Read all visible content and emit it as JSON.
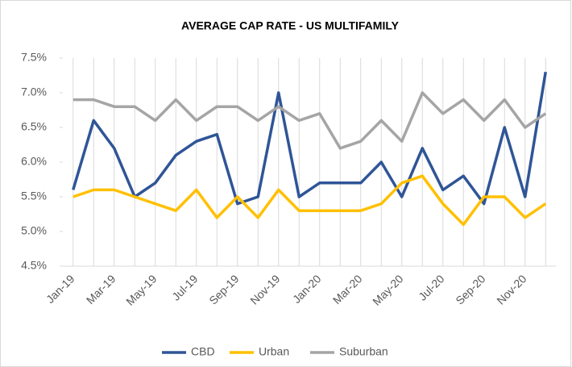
{
  "chart_data": {
    "type": "line",
    "title": "AVERAGE CAP RATE - US MULTIFAMILY",
    "categories": [
      "Jan-19",
      null,
      "Mar-19",
      null,
      "May-19",
      null,
      "Jul-19",
      null,
      "Sep-19",
      null,
      "Nov-19",
      null,
      "Jan-20",
      null,
      "Mar-20",
      null,
      "May-20",
      null,
      "Jul-20",
      null,
      "Sep-20",
      null,
      "Nov-20",
      null
    ],
    "series": [
      {
        "name": "CBD",
        "color": "#2f5597",
        "values": [
          5.6,
          6.6,
          6.2,
          5.5,
          5.7,
          6.1,
          6.3,
          6.4,
          5.4,
          5.5,
          7.0,
          5.5,
          5.7,
          5.7,
          5.7,
          6.0,
          5.5,
          6.2,
          5.6,
          5.8,
          5.4,
          6.5,
          5.5,
          7.3
        ]
      },
      {
        "name": "Urban",
        "color": "#ffc000",
        "values": [
          5.5,
          5.6,
          5.6,
          5.5,
          5.4,
          5.3,
          5.6,
          5.2,
          5.5,
          5.2,
          5.6,
          5.3,
          5.3,
          5.3,
          5.3,
          5.4,
          5.7,
          5.8,
          5.4,
          5.1,
          5.5,
          5.5,
          5.2,
          5.4
        ]
      },
      {
        "name": "Suburban",
        "color": "#a5a5a5",
        "values": [
          6.9,
          6.9,
          6.8,
          6.8,
          6.6,
          6.9,
          6.6,
          6.8,
          6.8,
          6.6,
          6.8,
          6.6,
          6.7,
          6.2,
          6.3,
          6.6,
          6.3,
          7.0,
          6.7,
          6.9,
          6.6,
          6.9,
          6.5,
          6.7
        ]
      }
    ],
    "ylim": [
      4.5,
      7.5
    ],
    "yticks": [
      {
        "value": 4.5,
        "label": "4.5%"
      },
      {
        "value": 5.0,
        "label": "5.0%"
      },
      {
        "value": 5.5,
        "label": "5.5%"
      },
      {
        "value": 6.0,
        "label": "6.0%"
      },
      {
        "value": 6.5,
        "label": "6.5%"
      },
      {
        "value": 7.0,
        "label": "7.0%"
      },
      {
        "value": 7.5,
        "label": "7.5%"
      }
    ],
    "grid": "x",
    "legend": "bottom"
  }
}
